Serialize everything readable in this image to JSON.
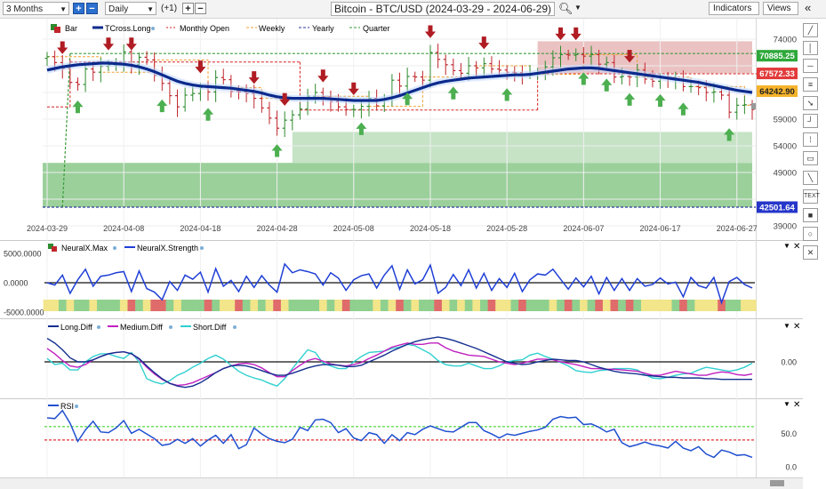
{
  "toolbar": {
    "range": "3 Months",
    "interval": "Daily",
    "offset": "(+1)",
    "title": "Bitcoin - BTC/USD (2024-03-29 - 2024-06-29)",
    "indicators": "Indicators",
    "views": "Views"
  },
  "legend": {
    "bar": "Bar",
    "tcross": "TCross.Long",
    "monthly": "Monthly Open",
    "weekly": "Weekly",
    "yearly": "Yearly",
    "quarter": "Quarter"
  },
  "price_badges": [
    "70885.25",
    "67572.33",
    "64242.90",
    "42501.64"
  ],
  "panels": {
    "p2": {
      "legend1": "NeuralX.Max",
      "legend2": "NeuralX.Strength"
    },
    "p3": {
      "legend1": "Long.Diff",
      "legend2": "Medium.Diff",
      "legend3": "Short.Diff"
    },
    "p4": {
      "legend1": "RSI"
    }
  },
  "colors": {
    "up": "#2e8b2e",
    "down": "#c0262c",
    "tcross": "#0b2a8c",
    "monthly": "#d62020",
    "weekly": "#f0a030",
    "yearly": "#2a3a9a",
    "quarter": "#3a9a3a",
    "strength": "#1f3fd6",
    "long_diff": "#14308f",
    "medium_diff": "#c020c0",
    "short_diff": "#30d0d0",
    "rsi": "#2050d0"
  },
  "chart_data": [
    {
      "type": "line",
      "title": "Bitcoin - BTC/USD (2024-03-29 - 2024-06-29)",
      "x_ticks": [
        "2024-03-29",
        "2024-04-08",
        "2024-04-18",
        "2024-04-28",
        "2024-05-08",
        "2024-05-18",
        "2024-05-28",
        "2024-06-07",
        "2024-06-17",
        "2024-06-27"
      ],
      "y_ticks": [
        39000,
        44000,
        49000,
        54000,
        59000,
        64000,
        69000,
        74000
      ],
      "ylim": [
        38500,
        76500
      ],
      "close": [
        70700,
        69600,
        68500,
        65900,
        65500,
        68400,
        67800,
        68900,
        69200,
        69300,
        71600,
        69200,
        70600,
        70100,
        67200,
        65700,
        63400,
        61300,
        63500,
        63800,
        64900,
        64100,
        66800,
        66400,
        64200,
        64100,
        63800,
        62900,
        61100,
        59200,
        57300,
        58800,
        59800,
        60900,
        63300,
        64000,
        63200,
        62300,
        61300,
        60800,
        60800,
        61400,
        62900,
        61500,
        62800,
        66300,
        65200,
        67000,
        66900,
        66300,
        71500,
        70200,
        69200,
        68100,
        67600,
        69000,
        68600,
        69400,
        68400,
        68200,
        67800,
        67700,
        67400,
        67500,
        67700,
        68800,
        70500,
        71100,
        71000,
        71100,
        70800,
        71100,
        69300,
        69600,
        66900,
        67000,
        66900,
        68200,
        66500,
        66100,
        66700,
        66500,
        66500,
        65100,
        65100,
        64900,
        64000,
        64100,
        63500,
        60300,
        61600,
        61700,
        60800
      ],
      "tcross_long": [
        68200,
        68500,
        68800,
        69000,
        69200,
        69300,
        69400,
        69500,
        69500,
        69400,
        69300,
        69100,
        68800,
        68400,
        67900,
        67300,
        66700,
        66100,
        65700,
        65400,
        65200,
        65100,
        65000,
        64900,
        64800,
        64600,
        64400,
        64200,
        63900,
        63500,
        63200,
        63000,
        62900,
        62900,
        62900,
        62900,
        62900,
        62800,
        62700,
        62600,
        62500,
        62500,
        62500,
        62500,
        62700,
        63000,
        63400,
        63900,
        64400,
        64900,
        65400,
        65800,
        66100,
        66300,
        66500,
        66700,
        66800,
        66900,
        67000,
        67100,
        67200,
        67300,
        67300,
        67400,
        67600,
        67800,
        68000,
        68200,
        68400,
        68500,
        68600,
        68600,
        68500,
        68300,
        68100,
        67900,
        67700,
        67500,
        67300,
        67100,
        66900,
        66700,
        66500,
        66300,
        66100,
        65900,
        65600,
        65300,
        65000,
        64700,
        64400,
        64200,
        64000
      ],
      "monthly_open": [
        {
          "from": 0,
          "to": 3,
          "value": 61300
        },
        {
          "from": 3,
          "to": 33,
          "value": 69700
        },
        {
          "from": 33,
          "to": 64,
          "value": 60700
        },
        {
          "from": 64,
          "to": 94,
          "value": 67500
        }
      ],
      "yearly": 42500,
      "quarter_level": 71300,
      "price_badges": [
        70885.25,
        67572.33,
        64242.9,
        42501.64
      ],
      "ylabel": ""
    },
    {
      "type": "line",
      "series": [
        {
          "name": "NeuralX.Strength",
          "values": [
            0,
            -400,
            1300,
            -1800,
            500,
            2300,
            -600,
            1100,
            1300,
            1700,
            1900,
            -1500,
            2000,
            -1000,
            -1600,
            -2900,
            200,
            -1300,
            1300,
            600,
            1800,
            -1600,
            2400,
            -600,
            400,
            -1500,
            1100,
            -800,
            1200,
            -400,
            -1600,
            3200,
            1700,
            2200,
            1900,
            1500,
            -400,
            1700,
            800,
            -1300,
            500,
            1200,
            1500,
            -900,
            1300,
            2900,
            -1100,
            2200,
            -200,
            500,
            3000,
            -1800,
            -800,
            1400,
            -500,
            2200,
            -900,
            1600,
            -1300,
            700,
            -800,
            1600,
            -1500,
            500,
            1500,
            1300,
            2300,
            600,
            -1100,
            800,
            -700,
            1100,
            -1900,
            900,
            -1300,
            700,
            -1300,
            700,
            -600,
            -300,
            800,
            -200,
            100,
            -2400,
            900,
            -500,
            -900,
            900,
            -3400,
            200,
            900,
            -300,
            -900
          ]
        }
      ],
      "ylim": [
        -5000,
        5000
      ],
      "y_ticks": [
        5000.0,
        0.0,
        -5000.0
      ]
    },
    {
      "type": "line",
      "series": [
        {
          "name": "Long.Diff",
          "values": [
            35,
            28,
            18,
            6,
            0,
            0,
            3,
            8,
            12,
            14,
            15,
            12,
            5,
            -6,
            -16,
            -25,
            -32,
            -36,
            -38,
            -36,
            -31,
            -24,
            -16,
            -10,
            -6,
            -5,
            -6,
            -9,
            -13,
            -17,
            -20,
            -20,
            -17,
            -13,
            -9,
            -6,
            -4,
            -4,
            -5,
            -7,
            -7,
            -5,
            0,
            5,
            10,
            16,
            21,
            26,
            30,
            33,
            35,
            37,
            35,
            32,
            28,
            24,
            20,
            15,
            10,
            5,
            0,
            -2,
            -4,
            -3,
            0,
            2,
            4,
            3,
            2,
            2,
            0,
            -4,
            -8,
            -11,
            -14,
            -16,
            -17,
            -18,
            -20,
            -21,
            -22,
            -23,
            -23,
            -24,
            -24,
            -24,
            -25,
            -25,
            -26,
            -26,
            -26,
            -26,
            -26
          ]
        },
        {
          "name": "Medium.Diff",
          "values": [
            20,
            12,
            2,
            -6,
            -8,
            -4,
            3,
            8,
            12,
            14,
            15,
            12,
            4,
            -8,
            -18,
            -26,
            -32,
            -35,
            -34,
            -31,
            -26,
            -21,
            -16,
            -10,
            -6,
            -3,
            -2,
            -4,
            -9,
            -16,
            -22,
            -22,
            -13,
            -5,
            2,
            5,
            1,
            -3,
            -5,
            -6,
            -4,
            -1,
            5,
            10,
            16,
            22,
            25,
            28,
            26,
            26,
            28,
            28,
            21,
            16,
            13,
            10,
            9,
            8,
            4,
            0,
            -2,
            -4,
            -2,
            1,
            4,
            4,
            3,
            0,
            -2,
            -4,
            -7,
            -10,
            -10,
            -11,
            -11,
            -12,
            -13,
            -14,
            -17,
            -20,
            -20,
            -17,
            -14,
            -16,
            -18,
            -20,
            -20,
            -17,
            -15,
            -16,
            -19,
            -20,
            -18
          ]
        },
        {
          "name": "Short.Diff",
          "values": [
            5,
            -4,
            -2,
            -12,
            -12,
            0,
            8,
            12,
            12,
            8,
            5,
            14,
            0,
            -25,
            -30,
            -33,
            -28,
            -20,
            -15,
            -8,
            -2,
            5,
            10,
            4,
            -5,
            -14,
            -20,
            -24,
            -27,
            -32,
            -36,
            -25,
            -10,
            4,
            18,
            14,
            -2,
            -6,
            -10,
            -10,
            0,
            8,
            14,
            15,
            16,
            20,
            22,
            26,
            24,
            18,
            12,
            2,
            -4,
            -6,
            -6,
            -2,
            -6,
            -10,
            -10,
            -6,
            0,
            2,
            3,
            10,
            13,
            8,
            4,
            -1,
            -6,
            -13,
            -15,
            -16,
            -13,
            -12,
            -10,
            -10,
            -10,
            -12,
            -19,
            -24,
            -25,
            -23,
            -20,
            -18,
            -17,
            -12,
            -8,
            -10,
            -12,
            -14,
            -12,
            -8,
            -2
          ]
        }
      ],
      "ylim": [
        -45,
        45
      ],
      "y_ticks": [
        0.0
      ]
    },
    {
      "type": "line",
      "series": [
        {
          "name": "RSI",
          "values": [
            73,
            72,
            84,
            65,
            38,
            55,
            68,
            52,
            51,
            58,
            69,
            50,
            56,
            49,
            42,
            32,
            34,
            41,
            35,
            42,
            31,
            40,
            47,
            35,
            48,
            27,
            33,
            58,
            49,
            42,
            38,
            36,
            41,
            59,
            54,
            70,
            71,
            66,
            51,
            57,
            43,
            39,
            51,
            48,
            35,
            48,
            39,
            51,
            48,
            56,
            61,
            57,
            53,
            52,
            59,
            66,
            66,
            54,
            49,
            43,
            49,
            47,
            50,
            53,
            55,
            59,
            71,
            75,
            73,
            74,
            63,
            64,
            59,
            52,
            56,
            36,
            30,
            33,
            37,
            33,
            31,
            28,
            38,
            28,
            24,
            30,
            19,
            14,
            25,
            22,
            17,
            18,
            14
          ]
        }
      ],
      "ylim": [
        -8,
        85
      ],
      "y_ticks": [
        50.0,
        0.0
      ],
      "levels": [
        60,
        40
      ]
    }
  ]
}
